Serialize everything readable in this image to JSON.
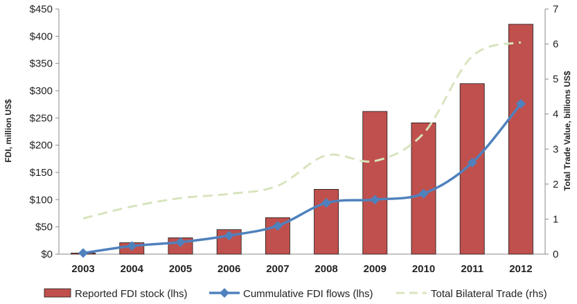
{
  "chart_data": {
    "type": "bar",
    "categories": [
      "2003",
      "2004",
      "2005",
      "2006",
      "2007",
      "2008",
      "2009",
      "2010",
      "2011",
      "2012"
    ],
    "series": [
      {
        "name": "Reported FDI stock (lhs)",
        "type": "bar",
        "axis": "left",
        "color": "#c0504d",
        "values": [
          2,
          21,
          30,
          45,
          67,
          119,
          262,
          241,
          313,
          422
        ]
      },
      {
        "name": "Cummulative FDI flows (lhs)",
        "type": "line",
        "marker": "diamond",
        "axis": "left",
        "color": "#4f81bd",
        "values": [
          2,
          15,
          22,
          34,
          52,
          94,
          100,
          111,
          168,
          276
        ]
      },
      {
        "name": "Total Bilateral Trade (rhs)",
        "type": "line",
        "style": "dashed",
        "axis": "right",
        "color": "#d7e4bd",
        "values": [
          1.02,
          1.36,
          1.6,
          1.72,
          1.95,
          2.82,
          2.66,
          3.45,
          5.65,
          6.05
        ]
      }
    ],
    "ylabel": "FDI, million US$",
    "y2label": "Total Trade Value, billions US$",
    "ylim": [
      0,
      450
    ],
    "y2lim": [
      0,
      7
    ],
    "yticks": [
      "$0",
      "$50",
      "$100",
      "$150",
      "$200",
      "$250",
      "$300",
      "$350",
      "$400",
      "$450"
    ],
    "y2ticks": [
      "0",
      "1",
      "2",
      "3",
      "4",
      "5",
      "6",
      "7"
    ],
    "legend_position": "bottom",
    "grid": false
  }
}
